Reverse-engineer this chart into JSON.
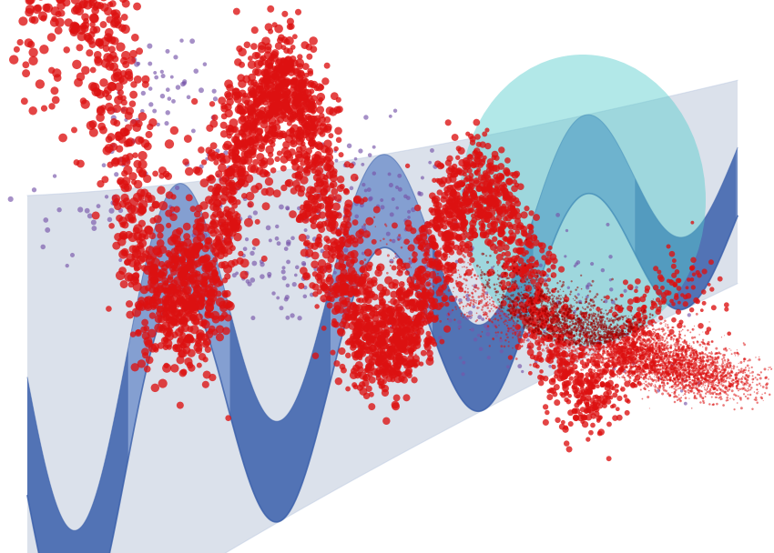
{
  "bg_color": "#ffffff",
  "wave_dark_color": "#3a5faa",
  "wave_mid_color": "#7090cc",
  "wave_light_color": "#b0c0dd",
  "envelope_color": "#99aac8",
  "envelope_alpha": 0.35,
  "cyan_color": "#55cccc",
  "cyan_alpha": 0.45,
  "red_color": "#dd1111",
  "dark_red_color": "#990000",
  "purple_color": "#7755aa",
  "fig_width": 8.5,
  "fig_height": 6.08,
  "dpi": 100
}
